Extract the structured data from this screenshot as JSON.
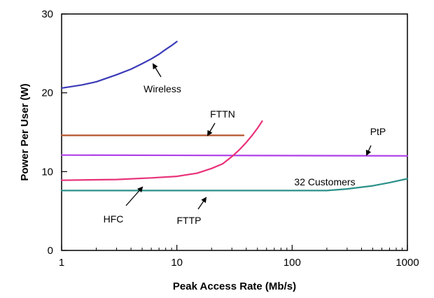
{
  "chart_data": {
    "type": "line",
    "xscale": "log",
    "xlim": [
      1,
      1000
    ],
    "ylim": [
      0,
      30
    ],
    "xlabel": "Peak Access Rate (Mb/s)",
    "ylabel": "Power Per User (W)",
    "xticks": [
      1,
      10,
      100,
      1000
    ],
    "xtick_labels": [
      "1",
      "10",
      "100",
      "1000"
    ],
    "yticks": [
      0,
      10,
      20,
      30
    ],
    "ytick_labels": [
      "0",
      "10",
      "20",
      "30"
    ],
    "grid": false,
    "legend": "none",
    "series": [
      {
        "name": "Wireless",
        "color": "#3b3bb8",
        "x": [
          1,
          1.5,
          2,
          3,
          4,
          5,
          6,
          7,
          8,
          9,
          10
        ],
        "y": [
          20.6,
          21.0,
          21.4,
          22.3,
          23.0,
          23.7,
          24.3,
          24.9,
          25.5,
          26.0,
          26.5
        ]
      },
      {
        "name": "FTTN",
        "color": "#b5522a",
        "x": [
          1,
          38
        ],
        "y": [
          14.6,
          14.6
        ]
      },
      {
        "name": "PtP",
        "color": "#b040e8",
        "x": [
          1,
          1000
        ],
        "y": [
          12.1,
          12.0
        ]
      },
      {
        "name": "HFC",
        "color": "#e8327a",
        "x": [
          1,
          3,
          6,
          10,
          15,
          20,
          25,
          30,
          35,
          40,
          45,
          50,
          55
        ],
        "y": [
          8.9,
          9.0,
          9.2,
          9.4,
          9.8,
          10.4,
          11.0,
          11.9,
          12.8,
          13.7,
          14.6,
          15.5,
          16.4
        ]
      },
      {
        "name": "FTTP",
        "color": "#2a9088",
        "x": [
          1,
          10,
          100,
          200,
          300,
          500,
          700,
          1000
        ],
        "y": [
          7.6,
          7.6,
          7.6,
          7.6,
          7.8,
          8.2,
          8.6,
          9.1
        ]
      }
    ],
    "annotations": [
      {
        "text": "Wireless",
        "series": "Wireless"
      },
      {
        "text": "FTTN",
        "series": "FTTN"
      },
      {
        "text": "PtP",
        "series": "PtP"
      },
      {
        "text": "HFC",
        "series": "HFC"
      },
      {
        "text": "FTTP",
        "series": "FTTP"
      },
      {
        "text": "32 Customers",
        "series": "FTTP"
      }
    ]
  }
}
